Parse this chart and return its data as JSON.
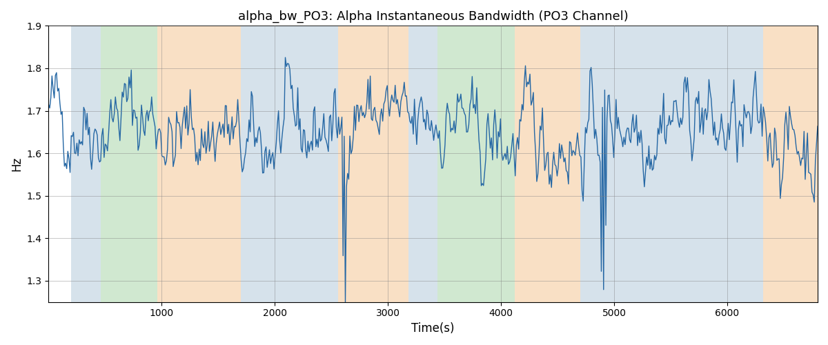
{
  "title": "alpha_bw_PO3: Alpha Instantaneous Bandwidth (PO3 Channel)",
  "xlabel": "Time(s)",
  "ylabel": "Hz",
  "xlim": [
    0,
    6800
  ],
  "ylim": [
    1.25,
    1.9
  ],
  "yticks": [
    1.3,
    1.4,
    1.5,
    1.6,
    1.7,
    1.8,
    1.9
  ],
  "xticks": [
    1000,
    2000,
    3000,
    4000,
    5000,
    6000
  ],
  "line_color": "#2567a4",
  "line_width": 1.0,
  "background_regions": [
    {
      "start": 200,
      "end": 460,
      "color": "#aec6d8",
      "alpha": 0.5
    },
    {
      "start": 460,
      "end": 960,
      "color": "#90c990",
      "alpha": 0.42
    },
    {
      "start": 960,
      "end": 1700,
      "color": "#f5c896",
      "alpha": 0.55
    },
    {
      "start": 1700,
      "end": 2560,
      "color": "#aec6d8",
      "alpha": 0.5
    },
    {
      "start": 2560,
      "end": 3180,
      "color": "#f5c896",
      "alpha": 0.55
    },
    {
      "start": 3180,
      "end": 3440,
      "color": "#aec6d8",
      "alpha": 0.5
    },
    {
      "start": 3440,
      "end": 4120,
      "color": "#90c990",
      "alpha": 0.42
    },
    {
      "start": 4120,
      "end": 4700,
      "color": "#f5c896",
      "alpha": 0.55
    },
    {
      "start": 4700,
      "end": 6320,
      "color": "#aec6d8",
      "alpha": 0.5
    },
    {
      "start": 6320,
      "end": 6800,
      "color": "#f5c896",
      "alpha": 0.55
    }
  ],
  "seed": 42,
  "n_points": 680,
  "base_mean": 1.655,
  "noise_std": 0.055
}
